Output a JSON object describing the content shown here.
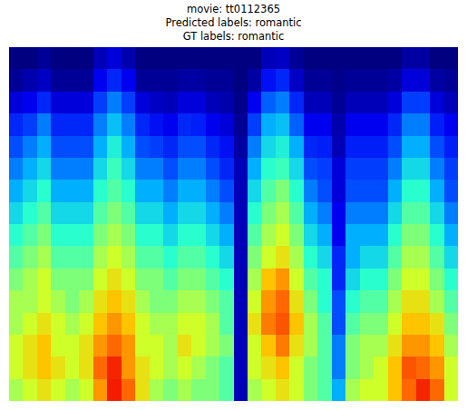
{
  "chart_data": {
    "type": "heatmap",
    "title": [
      "movie: tt0112365",
      "Predicted labels: romantic",
      "GT labels: romantic"
    ],
    "tick_labels": false,
    "zlim": [
      0,
      1
    ],
    "cells": [
      [
        0.55,
        0.6,
        0.65,
        0.6,
        0.55,
        0.6,
        0.75,
        0.88,
        0.8,
        0.65,
        0.55,
        0.5,
        0.55,
        0.5,
        0.5,
        0.45,
        0.05,
        0.55,
        0.6,
        0.65,
        0.6,
        0.5,
        0.45,
        0.3,
        0.55,
        0.6,
        0.6,
        0.7,
        0.8,
        0.87,
        0.8,
        0.6
      ],
      [
        0.6,
        0.65,
        0.7,
        0.65,
        0.6,
        0.65,
        0.8,
        0.87,
        0.75,
        0.65,
        0.6,
        0.55,
        0.6,
        0.55,
        0.5,
        0.45,
        0.05,
        0.6,
        0.65,
        0.7,
        0.6,
        0.5,
        0.45,
        0.25,
        0.5,
        0.55,
        0.6,
        0.7,
        0.82,
        0.8,
        0.75,
        0.6
      ],
      [
        0.6,
        0.65,
        0.7,
        0.6,
        0.6,
        0.65,
        0.75,
        0.8,
        0.75,
        0.6,
        0.6,
        0.55,
        0.65,
        0.6,
        0.55,
        0.5,
        0.05,
        0.6,
        0.7,
        0.78,
        0.65,
        0.55,
        0.45,
        0.25,
        0.5,
        0.55,
        0.55,
        0.65,
        0.75,
        0.75,
        0.7,
        0.55
      ],
      [
        0.55,
        0.6,
        0.65,
        0.6,
        0.55,
        0.6,
        0.7,
        0.75,
        0.7,
        0.6,
        0.55,
        0.55,
        0.6,
        0.6,
        0.55,
        0.45,
        0.05,
        0.65,
        0.78,
        0.82,
        0.7,
        0.55,
        0.45,
        0.2,
        0.45,
        0.5,
        0.5,
        0.6,
        0.7,
        0.7,
        0.65,
        0.5
      ],
      [
        0.55,
        0.55,
        0.6,
        0.55,
        0.5,
        0.55,
        0.65,
        0.7,
        0.65,
        0.55,
        0.5,
        0.5,
        0.55,
        0.55,
        0.5,
        0.45,
        0.05,
        0.6,
        0.75,
        0.8,
        0.65,
        0.5,
        0.4,
        0.2,
        0.4,
        0.45,
        0.45,
        0.55,
        0.65,
        0.65,
        0.55,
        0.45
      ],
      [
        0.5,
        0.55,
        0.6,
        0.5,
        0.5,
        0.5,
        0.6,
        0.65,
        0.6,
        0.5,
        0.5,
        0.45,
        0.5,
        0.5,
        0.45,
        0.4,
        0.05,
        0.55,
        0.7,
        0.75,
        0.6,
        0.45,
        0.4,
        0.15,
        0.35,
        0.4,
        0.4,
        0.5,
        0.6,
        0.6,
        0.5,
        0.4
      ],
      [
        0.45,
        0.5,
        0.55,
        0.45,
        0.45,
        0.45,
        0.55,
        0.6,
        0.55,
        0.45,
        0.45,
        0.4,
        0.45,
        0.45,
        0.4,
        0.35,
        0.05,
        0.5,
        0.6,
        0.65,
        0.55,
        0.4,
        0.35,
        0.15,
        0.3,
        0.35,
        0.35,
        0.45,
        0.55,
        0.55,
        0.45,
        0.35
      ],
      [
        0.4,
        0.45,
        0.5,
        0.4,
        0.4,
        0.4,
        0.5,
        0.55,
        0.5,
        0.4,
        0.4,
        0.35,
        0.4,
        0.4,
        0.35,
        0.3,
        0.05,
        0.45,
        0.55,
        0.6,
        0.5,
        0.35,
        0.3,
        0.1,
        0.3,
        0.3,
        0.3,
        0.4,
        0.5,
        0.5,
        0.4,
        0.3
      ],
      [
        0.35,
        0.4,
        0.45,
        0.35,
        0.35,
        0.35,
        0.45,
        0.5,
        0.45,
        0.35,
        0.35,
        0.3,
        0.35,
        0.35,
        0.3,
        0.25,
        0.05,
        0.4,
        0.5,
        0.55,
        0.45,
        0.3,
        0.25,
        0.1,
        0.25,
        0.25,
        0.25,
        0.35,
        0.45,
        0.45,
        0.35,
        0.25
      ],
      [
        0.3,
        0.35,
        0.4,
        0.3,
        0.3,
        0.3,
        0.4,
        0.45,
        0.4,
        0.3,
        0.3,
        0.25,
        0.3,
        0.3,
        0.25,
        0.2,
        0.05,
        0.35,
        0.45,
        0.5,
        0.4,
        0.25,
        0.2,
        0.08,
        0.2,
        0.2,
        0.2,
        0.3,
        0.4,
        0.4,
        0.3,
        0.2
      ],
      [
        0.25,
        0.3,
        0.35,
        0.25,
        0.25,
        0.25,
        0.35,
        0.42,
        0.35,
        0.25,
        0.25,
        0.2,
        0.25,
        0.25,
        0.2,
        0.15,
        0.05,
        0.3,
        0.4,
        0.42,
        0.35,
        0.2,
        0.18,
        0.08,
        0.18,
        0.18,
        0.18,
        0.25,
        0.35,
        0.35,
        0.25,
        0.18
      ],
      [
        0.2,
        0.25,
        0.3,
        0.2,
        0.2,
        0.2,
        0.3,
        0.38,
        0.3,
        0.2,
        0.18,
        0.15,
        0.2,
        0.2,
        0.15,
        0.12,
        0.03,
        0.25,
        0.35,
        0.38,
        0.3,
        0.15,
        0.14,
        0.05,
        0.14,
        0.14,
        0.14,
        0.2,
        0.3,
        0.3,
        0.2,
        0.14
      ],
      [
        0.15,
        0.18,
        0.25,
        0.15,
        0.15,
        0.15,
        0.25,
        0.32,
        0.25,
        0.15,
        0.12,
        0.1,
        0.15,
        0.14,
        0.1,
        0.08,
        0.02,
        0.18,
        0.3,
        0.32,
        0.22,
        0.1,
        0.1,
        0.04,
        0.1,
        0.1,
        0.1,
        0.15,
        0.25,
        0.25,
        0.14,
        0.1
      ],
      [
        0.08,
        0.1,
        0.15,
        0.08,
        0.08,
        0.08,
        0.18,
        0.25,
        0.18,
        0.08,
        0.06,
        0.05,
        0.08,
        0.08,
        0.05,
        0.04,
        0.01,
        0.1,
        0.22,
        0.25,
        0.15,
        0.05,
        0.05,
        0.02,
        0.05,
        0.05,
        0.05,
        0.08,
        0.18,
        0.18,
        0.08,
        0.05
      ],
      [
        0.02,
        0.04,
        0.06,
        0.02,
        0.02,
        0.02,
        0.1,
        0.15,
        0.1,
        0.02,
        0.02,
        0.02,
        0.03,
        0.03,
        0.02,
        0.02,
        0,
        0.03,
        0.12,
        0.15,
        0.06,
        0.02,
        0.02,
        0.01,
        0.02,
        0.02,
        0.02,
        0.03,
        0.08,
        0.08,
        0.03,
        0.02
      ],
      [
        0,
        0,
        0.02,
        0,
        0,
        0,
        0.05,
        0.08,
        0.04,
        0,
        0,
        0,
        0,
        0,
        0,
        0,
        0,
        0,
        0.05,
        0.06,
        0.02,
        0,
        0,
        0,
        0,
        0,
        0,
        0,
        0.03,
        0.03,
        0,
        0
      ]
    ]
  }
}
